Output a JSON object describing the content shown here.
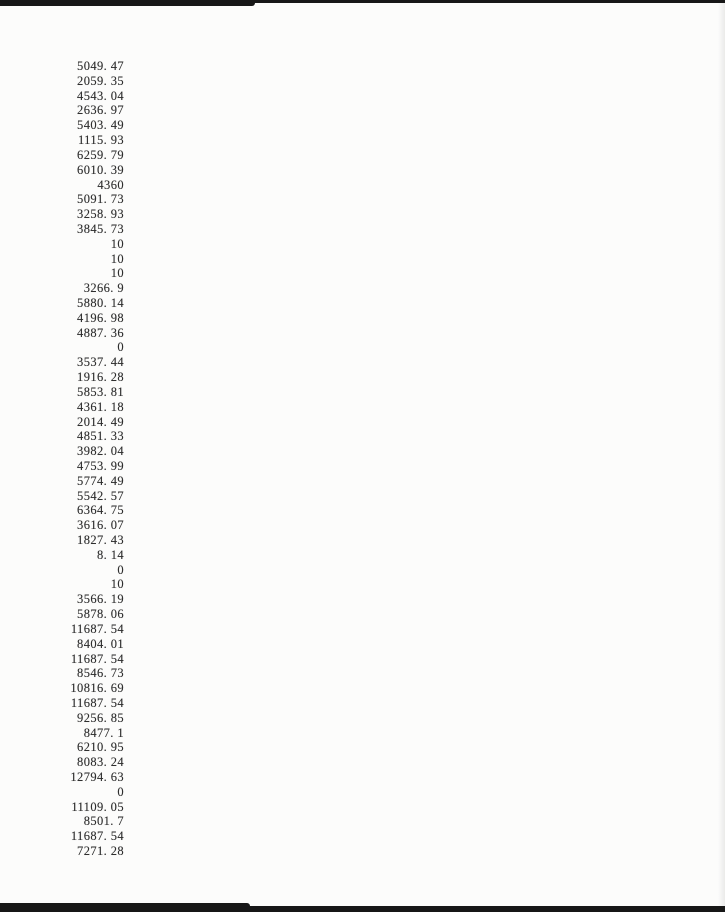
{
  "page": {
    "background_color": "#fcfcfb",
    "scan_bar_color": "#171717",
    "text_color": "#2e2e2e"
  },
  "number_column": {
    "values": [
      "5049. 47",
      "2059. 35",
      "4543. 04",
      "2636. 97",
      "5403. 49",
      "1115. 93",
      "6259. 79",
      "6010. 39",
      "4360",
      "5091. 73",
      "3258. 93",
      "3845. 73",
      "10",
      "10",
      "10",
      "3266. 9",
      "5880. 14",
      "4196. 98",
      "4887. 36",
      "0",
      "3537. 44",
      "1916. 28",
      "5853. 81",
      "4361. 18",
      "2014. 49",
      "4851. 33",
      "3982. 04",
      "4753. 99",
      "5774. 49",
      "5542. 57",
      "6364. 75",
      "3616. 07",
      "1827. 43",
      "8. 14",
      "0",
      "10",
      "3566. 19",
      "5878. 06",
      "11687. 54",
      "8404. 01",
      "11687. 54",
      "8546. 73",
      "10816. 69",
      "11687. 54",
      "9256. 85",
      "8477. 1",
      "6210. 95",
      "8083. 24",
      "12794. 63",
      "0",
      "11109. 05",
      "8501. 7",
      "11687. 54",
      "7271. 28"
    ]
  }
}
